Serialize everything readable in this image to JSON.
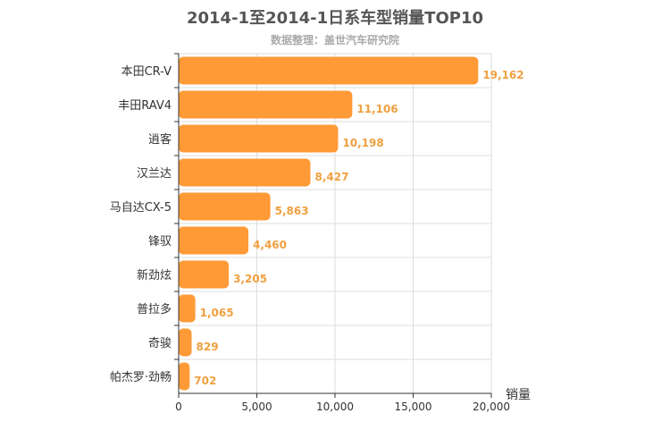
{
  "chart_data": {
    "type": "bar",
    "orientation": "horizontal",
    "title": "2014-1至2014-1日系车型销量TOP10",
    "subtitle": "数据整理：盖世汽车研究院",
    "xlabel": "销量",
    "ylabel": "",
    "xlim": [
      0,
      20000
    ],
    "x_ticks": [
      "0",
      "5,000",
      "10,000",
      "15,000",
      "20,000"
    ],
    "categories": [
      "本田CR-V",
      "丰田RAV4",
      "逍客",
      "汉兰达",
      "马自达CX-5",
      "锋驭",
      "新劲炫",
      "普拉多",
      "奇骏",
      "帕杰罗·劲畅"
    ],
    "values": [
      19162,
      11106,
      10198,
      8427,
      5863,
      4460,
      3205,
      1065,
      829,
      702
    ],
    "value_labels": [
      "19,162",
      "11,106",
      "10,198",
      "8,427",
      "5,863",
      "4,460",
      "3,205",
      "1,065",
      "829",
      "702"
    ],
    "bar_color": "#ff9a36",
    "label_color": "#f0a040",
    "grid": true,
    "legend": "none"
  }
}
